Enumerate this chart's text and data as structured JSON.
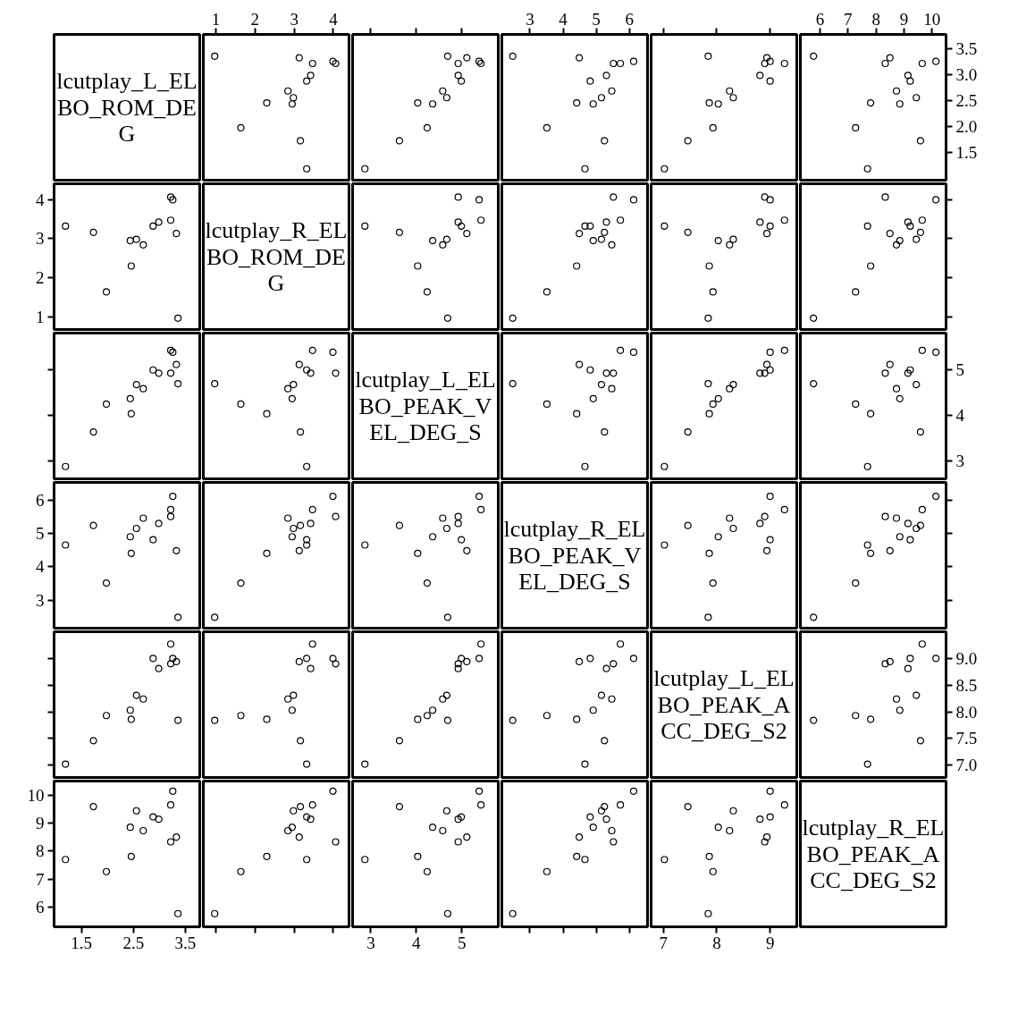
{
  "chart_data": [
    {
      "type": "other",
      "title": "lcutplay_L_ELBO_ROM_DEG"
    },
    {
      "type": "scatter",
      "marker": "circle",
      "x": [
        3.32,
        3.16,
        1.64,
        2.95,
        2.3,
        2.98,
        2.84,
        3.32,
        3.42,
        3.47,
        4.06,
        3.99,
        3.13,
        0.97
      ],
      "values": [
        1.19,
        1.73,
        1.98,
        2.44,
        2.46,
        2.56,
        2.69,
        2.88,
        2.99,
        3.22,
        3.22,
        3.26,
        3.33,
        3.36
      ],
      "xlim": [
        0.68,
        4.4
      ],
      "ylim": [
        0.97,
        3.78
      ],
      "xticks": [
        1,
        2,
        3,
        4
      ],
      "tick_labels": "x"
    },
    {
      "type": "scatter",
      "marker": "circle",
      "x": [
        2.87,
        3.63,
        4.24,
        4.36,
        4.03,
        4.67,
        4.58,
        4.99,
        4.92,
        5.42,
        4.92,
        5.38,
        5.11,
        4.69
      ],
      "values": [
        1.19,
        1.73,
        1.98,
        2.44,
        2.46,
        2.56,
        2.69,
        2.88,
        2.99,
        3.22,
        3.22,
        3.26,
        3.33,
        3.36
      ],
      "xlim": [
        2.6,
        5.8
      ],
      "ylim": [
        0.97,
        3.78
      ],
      "xticks": [
        3,
        4,
        5
      ],
      "tick_labels": false
    },
    {
      "type": "scatter",
      "marker": "circle",
      "x": [
        4.66,
        5.25,
        3.51,
        4.91,
        4.41,
        5.16,
        5.47,
        4.82,
        5.31,
        5.73,
        5.52,
        6.13,
        4.49,
        2.48
      ],
      "values": [
        1.19,
        1.73,
        1.98,
        2.44,
        2.46,
        2.56,
        2.69,
        2.88,
        2.99,
        3.22,
        3.22,
        3.26,
        3.33,
        3.36
      ],
      "xlim": [
        2.15,
        6.55
      ],
      "ylim": [
        0.97,
        3.78
      ],
      "xticks": [
        3,
        4,
        5,
        6
      ],
      "tick_labels": "x"
    },
    {
      "type": "scatter",
      "marker": "circle",
      "x": [
        7.02,
        7.46,
        7.93,
        8.03,
        7.86,
        8.31,
        8.24,
        9.0,
        8.81,
        9.27,
        8.9,
        9.0,
        8.94,
        7.84
      ],
      "values": [
        1.19,
        1.73,
        1.98,
        2.44,
        2.46,
        2.56,
        2.69,
        2.88,
        2.99,
        3.22,
        3.22,
        3.26,
        3.33,
        3.36
      ],
      "xlim": [
        6.77,
        9.5
      ],
      "ylim": [
        0.97,
        3.78
      ],
      "xticks": [
        7,
        8,
        9
      ],
      "tick_labels": false
    },
    {
      "type": "scatter",
      "marker": "circle",
      "x": [
        7.7,
        9.59,
        7.27,
        8.85,
        7.81,
        9.44,
        8.73,
        9.22,
        9.14,
        9.65,
        8.33,
        10.14,
        8.5,
        5.77
      ],
      "values": [
        1.19,
        1.73,
        1.98,
        2.44,
        2.46,
        2.56,
        2.69,
        2.88,
        2.99,
        3.22,
        3.22,
        3.26,
        3.33,
        3.36
      ],
      "xlim": [
        5.3,
        10.5
      ],
      "ylim": [
        0.97,
        3.78
      ],
      "xticks": [
        6,
        7,
        8,
        9,
        10
      ],
      "yticks": [
        1.5,
        {
          "value": 2,
          "label": "2.0"
        },
        2.5,
        {
          "value": 3,
          "label": "3.0"
        },
        3.5
      ]
    },
    {
      "type": "scatter",
      "marker": "circle",
      "x": [
        1.19,
        1.73,
        1.98,
        2.44,
        2.46,
        2.56,
        2.69,
        2.88,
        2.99,
        3.22,
        3.22,
        3.26,
        3.33,
        3.36
      ],
      "values": [
        3.32,
        3.16,
        1.64,
        2.95,
        2.3,
        2.98,
        2.84,
        3.32,
        3.42,
        3.47,
        4.06,
        3.99,
        3.13,
        0.97
      ],
      "xlim": [
        0.97,
        3.78
      ],
      "ylim": [
        0.68,
        4.4
      ],
      "yticks": [
        1,
        2,
        3,
        4
      ],
      "tick_labels": "y"
    },
    {
      "type": "other",
      "title": "lcutplay_R_ELBO_ROM_DEG"
    },
    {
      "type": "scatter",
      "marker": "circle",
      "x": [
        2.87,
        3.63,
        4.24,
        4.36,
        4.03,
        4.67,
        4.58,
        4.99,
        4.92,
        5.42,
        4.92,
        5.38,
        5.11,
        4.69
      ],
      "values": [
        3.32,
        3.16,
        1.64,
        2.95,
        2.3,
        2.98,
        2.84,
        3.32,
        3.42,
        3.47,
        4.06,
        3.99,
        3.13,
        0.97
      ],
      "xlim": [
        2.6,
        5.8
      ],
      "ylim": [
        0.68,
        4.4
      ],
      "tick_labels": false
    },
    {
      "type": "scatter",
      "marker": "circle",
      "x": [
        4.66,
        5.25,
        3.51,
        4.91,
        4.41,
        5.16,
        5.47,
        4.82,
        5.31,
        5.73,
        5.52,
        6.13,
        4.49,
        2.48
      ],
      "values": [
        3.32,
        3.16,
        1.64,
        2.95,
        2.3,
        2.98,
        2.84,
        3.32,
        3.42,
        3.47,
        4.06,
        3.99,
        3.13,
        0.97
      ],
      "xlim": [
        2.15,
        6.55
      ],
      "ylim": [
        0.68,
        4.4
      ],
      "tick_labels": false
    },
    {
      "type": "scatter",
      "marker": "circle",
      "x": [
        7.02,
        7.46,
        7.93,
        8.03,
        7.86,
        8.31,
        8.24,
        9.0,
        8.81,
        9.27,
        8.9,
        9.0,
        8.94,
        7.84
      ],
      "values": [
        3.32,
        3.16,
        1.64,
        2.95,
        2.3,
        2.98,
        2.84,
        3.32,
        3.42,
        3.47,
        4.06,
        3.99,
        3.13,
        0.97
      ],
      "xlim": [
        6.77,
        9.5
      ],
      "ylim": [
        0.68,
        4.4
      ],
      "tick_labels": false
    },
    {
      "type": "scatter",
      "marker": "circle",
      "x": [
        7.7,
        9.59,
        7.27,
        8.85,
        7.81,
        9.44,
        8.73,
        9.22,
        9.14,
        9.65,
        8.33,
        10.14,
        8.5,
        5.77
      ],
      "values": [
        3.32,
        3.16,
        1.64,
        2.95,
        2.3,
        2.98,
        2.84,
        3.32,
        3.42,
        3.47,
        4.06,
        3.99,
        3.13,
        0.97
      ],
      "xlim": [
        5.3,
        10.5
      ],
      "ylim": [
        0.68,
        4.4
      ],
      "yticks": [
        1,
        2,
        3,
        4
      ],
      "tick_labels": false
    },
    {
      "type": "scatter",
      "marker": "circle",
      "x": [
        1.19,
        1.73,
        1.98,
        2.44,
        2.46,
        2.56,
        2.69,
        2.88,
        2.99,
        3.22,
        3.22,
        3.26,
        3.33,
        3.36
      ],
      "values": [
        2.87,
        3.63,
        4.24,
        4.36,
        4.03,
        4.67,
        4.58,
        4.99,
        4.92,
        5.42,
        4.92,
        5.38,
        5.11,
        4.69
      ],
      "xlim": [
        0.97,
        3.78
      ],
      "ylim": [
        2.6,
        5.8
      ],
      "yticks": [
        3,
        4,
        5
      ],
      "tick_labels": false
    },
    {
      "type": "scatter",
      "marker": "circle",
      "x": [
        3.32,
        3.16,
        1.64,
        2.95,
        2.3,
        2.98,
        2.84,
        3.32,
        3.42,
        3.47,
        4.06,
        3.99,
        3.13,
        0.97
      ],
      "values": [
        2.87,
        3.63,
        4.24,
        4.36,
        4.03,
        4.67,
        4.58,
        4.99,
        4.92,
        5.42,
        4.92,
        5.38,
        5.11,
        4.69
      ],
      "xlim": [
        0.68,
        4.4
      ],
      "ylim": [
        2.6,
        5.8
      ],
      "tick_labels": false
    },
    {
      "type": "other",
      "title": "lcutplay_L_ELBO_PEAK_VEL_DEG_S"
    },
    {
      "type": "scatter",
      "marker": "circle",
      "x": [
        4.66,
        5.25,
        3.51,
        4.91,
        4.41,
        5.16,
        5.47,
        4.82,
        5.31,
        5.73,
        5.52,
        6.13,
        4.49,
        2.48
      ],
      "values": [
        2.87,
        3.63,
        4.24,
        4.36,
        4.03,
        4.67,
        4.58,
        4.99,
        4.92,
        5.42,
        4.92,
        5.38,
        5.11,
        4.69
      ],
      "xlim": [
        2.15,
        6.55
      ],
      "ylim": [
        2.6,
        5.8
      ],
      "tick_labels": false
    },
    {
      "type": "scatter",
      "marker": "circle",
      "x": [
        7.02,
        7.46,
        7.93,
        8.03,
        7.86,
        8.31,
        8.24,
        9.0,
        8.81,
        9.27,
        8.9,
        9.0,
        8.94,
        7.84
      ],
      "values": [
        2.87,
        3.63,
        4.24,
        4.36,
        4.03,
        4.67,
        4.58,
        4.99,
        4.92,
        5.42,
        4.92,
        5.38,
        5.11,
        4.69
      ],
      "xlim": [
        6.77,
        9.5
      ],
      "ylim": [
        2.6,
        5.8
      ],
      "tick_labels": false
    },
    {
      "type": "scatter",
      "marker": "circle",
      "x": [
        7.7,
        9.59,
        7.27,
        8.85,
        7.81,
        9.44,
        8.73,
        9.22,
        9.14,
        9.65,
        8.33,
        10.14,
        8.5,
        5.77
      ],
      "values": [
        2.87,
        3.63,
        4.24,
        4.36,
        4.03,
        4.67,
        4.58,
        4.99,
        4.92,
        5.42,
        4.92,
        5.38,
        5.11,
        4.69
      ],
      "xlim": [
        5.3,
        10.5
      ],
      "ylim": [
        2.6,
        5.8
      ],
      "yticks": [
        3,
        4,
        5
      ],
      "tick_labels": "y"
    },
    {
      "type": "scatter",
      "marker": "circle",
      "x": [
        1.19,
        1.73,
        1.98,
        2.44,
        2.46,
        2.56,
        2.69,
        2.88,
        2.99,
        3.22,
        3.22,
        3.26,
        3.33,
        3.36
      ],
      "values": [
        4.66,
        5.25,
        3.51,
        4.91,
        4.41,
        5.16,
        5.47,
        4.82,
        5.31,
        5.73,
        5.52,
        6.13,
        4.49,
        2.48
      ],
      "xlim": [
        0.97,
        3.78
      ],
      "ylim": [
        2.15,
        6.55
      ],
      "yticks": [
        3,
        4,
        5,
        6
      ],
      "tick_labels": "y"
    },
    {
      "type": "scatter",
      "marker": "circle",
      "x": [
        3.32,
        3.16,
        1.64,
        2.95,
        2.3,
        2.98,
        2.84,
        3.32,
        3.42,
        3.47,
        4.06,
        3.99,
        3.13,
        0.97
      ],
      "values": [
        4.66,
        5.25,
        3.51,
        4.91,
        4.41,
        5.16,
        5.47,
        4.82,
        5.31,
        5.73,
        5.52,
        6.13,
        4.49,
        2.48
      ],
      "xlim": [
        0.68,
        4.4
      ],
      "ylim": [
        2.15,
        6.55
      ],
      "tick_labels": false
    },
    {
      "type": "scatter",
      "marker": "circle",
      "x": [
        2.87,
        3.63,
        4.24,
        4.36,
        4.03,
        4.67,
        4.58,
        4.99,
        4.92,
        5.42,
        4.92,
        5.38,
        5.11,
        4.69
      ],
      "values": [
        4.66,
        5.25,
        3.51,
        4.91,
        4.41,
        5.16,
        5.47,
        4.82,
        5.31,
        5.73,
        5.52,
        6.13,
        4.49,
        2.48
      ],
      "xlim": [
        2.6,
        5.8
      ],
      "ylim": [
        2.15,
        6.55
      ],
      "tick_labels": false
    },
    {
      "type": "other",
      "title": "lcutplay_R_ELBO_PEAK_VEL_DEG_S"
    },
    {
      "type": "scatter",
      "marker": "circle",
      "x": [
        7.02,
        7.46,
        7.93,
        8.03,
        7.86,
        8.31,
        8.24,
        9.0,
        8.81,
        9.27,
        8.9,
        9.0,
        8.94,
        7.84
      ],
      "values": [
        4.66,
        5.25,
        3.51,
        4.91,
        4.41,
        5.16,
        5.47,
        4.82,
        5.31,
        5.73,
        5.52,
        6.13,
        4.49,
        2.48
      ],
      "xlim": [
        6.77,
        9.5
      ],
      "ylim": [
        2.15,
        6.55
      ],
      "tick_labels": false
    },
    {
      "type": "scatter",
      "marker": "circle",
      "x": [
        7.7,
        9.59,
        7.27,
        8.85,
        7.81,
        9.44,
        8.73,
        9.22,
        9.14,
        9.65,
        8.33,
        10.14,
        8.5,
        5.77
      ],
      "values": [
        4.66,
        5.25,
        3.51,
        4.91,
        4.41,
        5.16,
        5.47,
        4.82,
        5.31,
        5.73,
        5.52,
        6.13,
        4.49,
        2.48
      ],
      "xlim": [
        5.3,
        10.5
      ],
      "ylim": [
        2.15,
        6.55
      ],
      "yticks": [
        3,
        4,
        5,
        6
      ],
      "tick_labels": false
    },
    {
      "type": "scatter",
      "marker": "circle",
      "x": [
        1.19,
        1.73,
        1.98,
        2.44,
        2.46,
        2.56,
        2.69,
        2.88,
        2.99,
        3.22,
        3.22,
        3.26,
        3.33,
        3.36
      ],
      "values": [
        7.02,
        7.46,
        7.93,
        8.03,
        7.86,
        8.31,
        8.24,
        9.0,
        8.81,
        9.27,
        8.9,
        9.0,
        8.94,
        7.84
      ],
      "xlim": [
        0.97,
        3.78
      ],
      "ylim": [
        6.77,
        9.5
      ],
      "yticks": [
        7,
        7.5,
        8,
        8.5,
        9
      ],
      "tick_labels": false
    },
    {
      "type": "scatter",
      "marker": "circle",
      "x": [
        3.32,
        3.16,
        1.64,
        2.95,
        2.3,
        2.98,
        2.84,
        3.32,
        3.42,
        3.47,
        4.06,
        3.99,
        3.13,
        0.97
      ],
      "values": [
        7.02,
        7.46,
        7.93,
        8.03,
        7.86,
        8.31,
        8.24,
        9.0,
        8.81,
        9.27,
        8.9,
        9.0,
        8.94,
        7.84
      ],
      "xlim": [
        0.68,
        4.4
      ],
      "ylim": [
        6.77,
        9.5
      ],
      "tick_labels": false
    },
    {
      "type": "scatter",
      "marker": "circle",
      "x": [
        2.87,
        3.63,
        4.24,
        4.36,
        4.03,
        4.67,
        4.58,
        4.99,
        4.92,
        5.42,
        4.92,
        5.38,
        5.11,
        4.69
      ],
      "values": [
        7.02,
        7.46,
        7.93,
        8.03,
        7.86,
        8.31,
        8.24,
        9.0,
        8.81,
        9.27,
        8.9,
        9.0,
        8.94,
        7.84
      ],
      "xlim": [
        2.6,
        5.8
      ],
      "ylim": [
        6.77,
        9.5
      ],
      "tick_labels": false
    },
    {
      "type": "scatter",
      "marker": "circle",
      "x": [
        4.66,
        5.25,
        3.51,
        4.91,
        4.41,
        5.16,
        5.47,
        4.82,
        5.31,
        5.73,
        5.52,
        6.13,
        4.49,
        2.48
      ],
      "values": [
        7.02,
        7.46,
        7.93,
        8.03,
        7.86,
        8.31,
        8.24,
        9.0,
        8.81,
        9.27,
        8.9,
        9.0,
        8.94,
        7.84
      ],
      "xlim": [
        2.15,
        6.55
      ],
      "ylim": [
        6.77,
        9.5
      ],
      "tick_labels": false
    },
    {
      "type": "other",
      "title": "lcutplay_L_ELBO_PEAK_ACC_DEG_S2"
    },
    {
      "type": "scatter",
      "marker": "circle",
      "x": [
        7.7,
        9.59,
        7.27,
        8.85,
        7.81,
        9.44,
        8.73,
        9.22,
        9.14,
        9.65,
        8.33,
        10.14,
        8.5,
        5.77
      ],
      "values": [
        7.02,
        7.46,
        7.93,
        8.03,
        7.86,
        8.31,
        8.24,
        9.0,
        8.81,
        9.27,
        8.9,
        9.0,
        8.94,
        7.84
      ],
      "xlim": [
        5.3,
        10.5
      ],
      "ylim": [
        6.77,
        9.5
      ],
      "yticks": [
        {
          "value": 7,
          "label": "7.0"
        },
        7.5,
        {
          "value": 8,
          "label": "8.0"
        },
        8.5,
        {
          "value": 9,
          "label": "9.0"
        }
      ],
      "tick_labels": "y"
    },
    {
      "type": "scatter",
      "marker": "circle",
      "x": [
        1.19,
        1.73,
        1.98,
        2.44,
        2.46,
        2.56,
        2.69,
        2.88,
        2.99,
        3.22,
        3.22,
        3.26,
        3.33,
        3.36
      ],
      "values": [
        7.7,
        9.59,
        7.27,
        8.85,
        7.81,
        9.44,
        8.73,
        9.22,
        9.14,
        9.65,
        8.33,
        10.14,
        8.5,
        5.77
      ],
      "xlim": [
        0.97,
        3.78
      ],
      "ylim": [
        5.3,
        10.5
      ],
      "xticks": [
        1.5,
        2.5,
        3.5
      ],
      "yticks": [
        6,
        7,
        8,
        9,
        10
      ]
    },
    {
      "type": "scatter",
      "marker": "circle",
      "x": [
        3.32,
        3.16,
        1.64,
        2.95,
        2.3,
        2.98,
        2.84,
        3.32,
        3.42,
        3.47,
        4.06,
        3.99,
        3.13,
        0.97
      ],
      "values": [
        7.7,
        9.59,
        7.27,
        8.85,
        7.81,
        9.44,
        8.73,
        9.22,
        9.14,
        9.65,
        8.33,
        10.14,
        8.5,
        5.77
      ],
      "xlim": [
        0.68,
        4.4
      ],
      "ylim": [
        5.3,
        10.5
      ],
      "xticks": [
        1,
        2,
        3,
        4
      ],
      "tick_labels": false
    },
    {
      "type": "scatter",
      "marker": "circle",
      "x": [
        2.87,
        3.63,
        4.24,
        4.36,
        4.03,
        4.67,
        4.58,
        4.99,
        4.92,
        5.42,
        4.92,
        5.38,
        5.11,
        4.69
      ],
      "values": [
        7.7,
        9.59,
        7.27,
        8.85,
        7.81,
        9.44,
        8.73,
        9.22,
        9.14,
        9.65,
        8.33,
        10.14,
        8.5,
        5.77
      ],
      "xlim": [
        2.6,
        5.8
      ],
      "ylim": [
        5.3,
        10.5
      ],
      "xticks": [
        3,
        4,
        5
      ],
      "tick_labels": "x"
    },
    {
      "type": "scatter",
      "marker": "circle",
      "x": [
        4.66,
        5.25,
        3.51,
        4.91,
        4.41,
        5.16,
        5.47,
        4.82,
        5.31,
        5.73,
        5.52,
        6.13,
        4.49,
        2.48
      ],
      "values": [
        7.7,
        9.59,
        7.27,
        8.85,
        7.81,
        9.44,
        8.73,
        9.22,
        9.14,
        9.65,
        8.33,
        10.14,
        8.5,
        5.77
      ],
      "xlim": [
        2.15,
        6.55
      ],
      "ylim": [
        5.3,
        10.5
      ],
      "xticks": [
        3,
        4,
        5,
        6
      ],
      "tick_labels": false
    },
    {
      "type": "scatter",
      "marker": "circle",
      "x": [
        7.02,
        7.46,
        7.93,
        8.03,
        7.86,
        8.31,
        8.24,
        9.0,
        8.81,
        9.27,
        8.9,
        9.0,
        8.94,
        7.84
      ],
      "values": [
        7.7,
        9.59,
        7.27,
        8.85,
        7.81,
        9.44,
        8.73,
        9.22,
        9.14,
        9.65,
        8.33,
        10.14,
        8.5,
        5.77
      ],
      "xlim": [
        6.77,
        9.5
      ],
      "ylim": [
        5.3,
        10.5
      ],
      "xticks": [
        7,
        8,
        9
      ],
      "tick_labels": "x"
    },
    {
      "type": "other",
      "title": "lcutplay_R_ELBO_PEAK_ACC_DEG_S2"
    }
  ]
}
